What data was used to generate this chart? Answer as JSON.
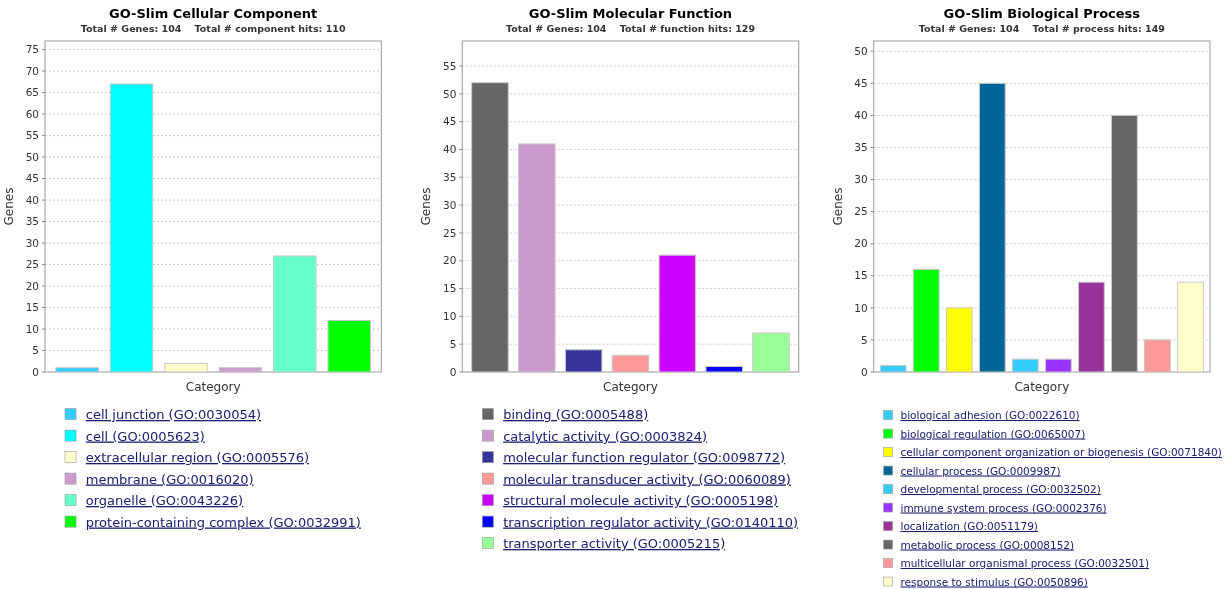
{
  "chart_data": [
    {
      "type": "bar",
      "title": "GO-Slim Cellular Component",
      "subtitle": "Total # Genes: 104    Total # component hits: 110",
      "xlabel": "Category",
      "ylabel": "Genes",
      "categories": [
        null,
        null,
        null,
        null,
        null,
        null
      ],
      "series": [
        {
          "name": "cell junction (GO:0030054)",
          "color": "#33ccff",
          "values": [
            1,
            null,
            null,
            null,
            null,
            null
          ]
        },
        {
          "name": "cell (GO:0005623)",
          "color": "#00ffff",
          "values": [
            null,
            67,
            null,
            null,
            null,
            null
          ]
        },
        {
          "name": "extracellular region (GO:0005576)",
          "color": "#ffffcc",
          "values": [
            null,
            null,
            2,
            null,
            null,
            null
          ]
        },
        {
          "name": "membrane (GO:0016020)",
          "color": "#cc99cc",
          "values": [
            null,
            null,
            null,
            1,
            null,
            null
          ]
        },
        {
          "name": "organelle (GO:0043226)",
          "color": "#66ffcc",
          "values": [
            null,
            null,
            null,
            null,
            27,
            null
          ]
        },
        {
          "name": "protein-containing complex (GO:0032991)",
          "color": "#00ff00",
          "values": [
            null,
            null,
            null,
            null,
            null,
            12
          ]
        }
      ],
      "ylim": [
        0,
        77
      ],
      "yticks": [
        0,
        5,
        10,
        15,
        20,
        25,
        30,
        35,
        40,
        45,
        50,
        55,
        60,
        65,
        70,
        75
      ],
      "grid": "y",
      "legend": "bottom",
      "tick_labels": "y"
    },
    {
      "type": "bar",
      "title": "GO-Slim Molecular Function",
      "subtitle": "Total # Genes: 104    Total # function hits: 129",
      "xlabel": "Category",
      "ylabel": "Genes",
      "categories": [
        null,
        null,
        null,
        null,
        null,
        null,
        null
      ],
      "series": [
        {
          "name": "binding (GO:0005488)",
          "color": "#666666",
          "values": [
            52,
            null,
            null,
            null,
            null,
            null,
            null
          ]
        },
        {
          "name": "catalytic activity (GO:0003824)",
          "color": "#cc99cc",
          "values": [
            null,
            41,
            null,
            null,
            null,
            null,
            null
          ]
        },
        {
          "name": "molecular function regulator (GO:0098772)",
          "color": "#333399",
          "values": [
            null,
            null,
            4,
            null,
            null,
            null,
            null
          ]
        },
        {
          "name": "molecular transducer activity (GO:0060089)",
          "color": "#ff9999",
          "values": [
            null,
            null,
            null,
            3,
            null,
            null,
            null
          ]
        },
        {
          "name": "structural molecule activity (GO:0005198)",
          "color": "#cc00ff",
          "values": [
            null,
            null,
            null,
            null,
            21,
            null,
            null
          ]
        },
        {
          "name": "transcription regulator activity (GO:0140110)",
          "color": "#0000ff",
          "values": [
            null,
            null,
            null,
            null,
            null,
            1,
            null
          ]
        },
        {
          "name": "transporter activity (GO:0005215)",
          "color": "#99ff99",
          "values": [
            null,
            null,
            null,
            null,
            null,
            null,
            7
          ]
        }
      ],
      "ylim": [
        0,
        59.5
      ],
      "yticks": [
        0,
        5,
        10,
        15,
        20,
        25,
        30,
        35,
        40,
        45,
        50,
        55
      ],
      "grid": "y",
      "legend": "bottom",
      "tick_labels": "y"
    },
    {
      "type": "bar",
      "title": "GO-Slim Biological Process",
      "subtitle": "Total # Genes: 104    Total # process hits: 149",
      "xlabel": "Category",
      "ylabel": "Genes",
      "categories": [
        null,
        null,
        null,
        null,
        null,
        null,
        null,
        null,
        null,
        null
      ],
      "series": [
        {
          "name": "biological adhesion (GO:0022610)",
          "color": "#33ccff",
          "values": [
            1,
            null,
            null,
            null,
            null,
            null,
            null,
            null,
            null,
            null
          ]
        },
        {
          "name": "biological regulation (GO:0065007)",
          "color": "#00ff00",
          "values": [
            null,
            16,
            null,
            null,
            null,
            null,
            null,
            null,
            null,
            null
          ]
        },
        {
          "name": "cellular component organization or biogenesis (GO:0071840)",
          "color": "#ffff00",
          "values": [
            null,
            null,
            10,
            null,
            null,
            null,
            null,
            null,
            null,
            null
          ]
        },
        {
          "name": "cellular process (GO:0009987)",
          "color": "#006699",
          "values": [
            null,
            null,
            null,
            45,
            null,
            null,
            null,
            null,
            null,
            null
          ]
        },
        {
          "name": "developmental process (GO:0032502)",
          "color": "#33ccff",
          "values": [
            null,
            null,
            null,
            null,
            2,
            null,
            null,
            null,
            null,
            null
          ]
        },
        {
          "name": "immune system process (GO:0002376)",
          "color": "#9933ff",
          "values": [
            null,
            null,
            null,
            null,
            null,
            2,
            null,
            null,
            null,
            null
          ]
        },
        {
          "name": "localization (GO:0051179)",
          "color": "#993399",
          "values": [
            null,
            null,
            null,
            null,
            null,
            null,
            14,
            null,
            null,
            null
          ]
        },
        {
          "name": "metabolic process (GO:0008152)",
          "color": "#666666",
          "values": [
            null,
            null,
            null,
            null,
            null,
            null,
            null,
            40,
            null,
            null
          ]
        },
        {
          "name": "multicellular organismal process (GO:0032501)",
          "color": "#ff9999",
          "values": [
            null,
            null,
            null,
            null,
            null,
            null,
            null,
            null,
            5,
            null
          ]
        },
        {
          "name": "response to stimulus (GO:0050896)",
          "color": "#ffffcc",
          "values": [
            null,
            null,
            null,
            null,
            null,
            null,
            null,
            null,
            null,
            14
          ]
        }
      ],
      "ylim": [
        0,
        51.6
      ],
      "yticks": [
        0,
        5,
        10,
        15,
        20,
        25,
        30,
        35,
        40,
        45,
        50
      ],
      "grid": "y",
      "legend": "bottom",
      "tick_labels": "y"
    }
  ]
}
